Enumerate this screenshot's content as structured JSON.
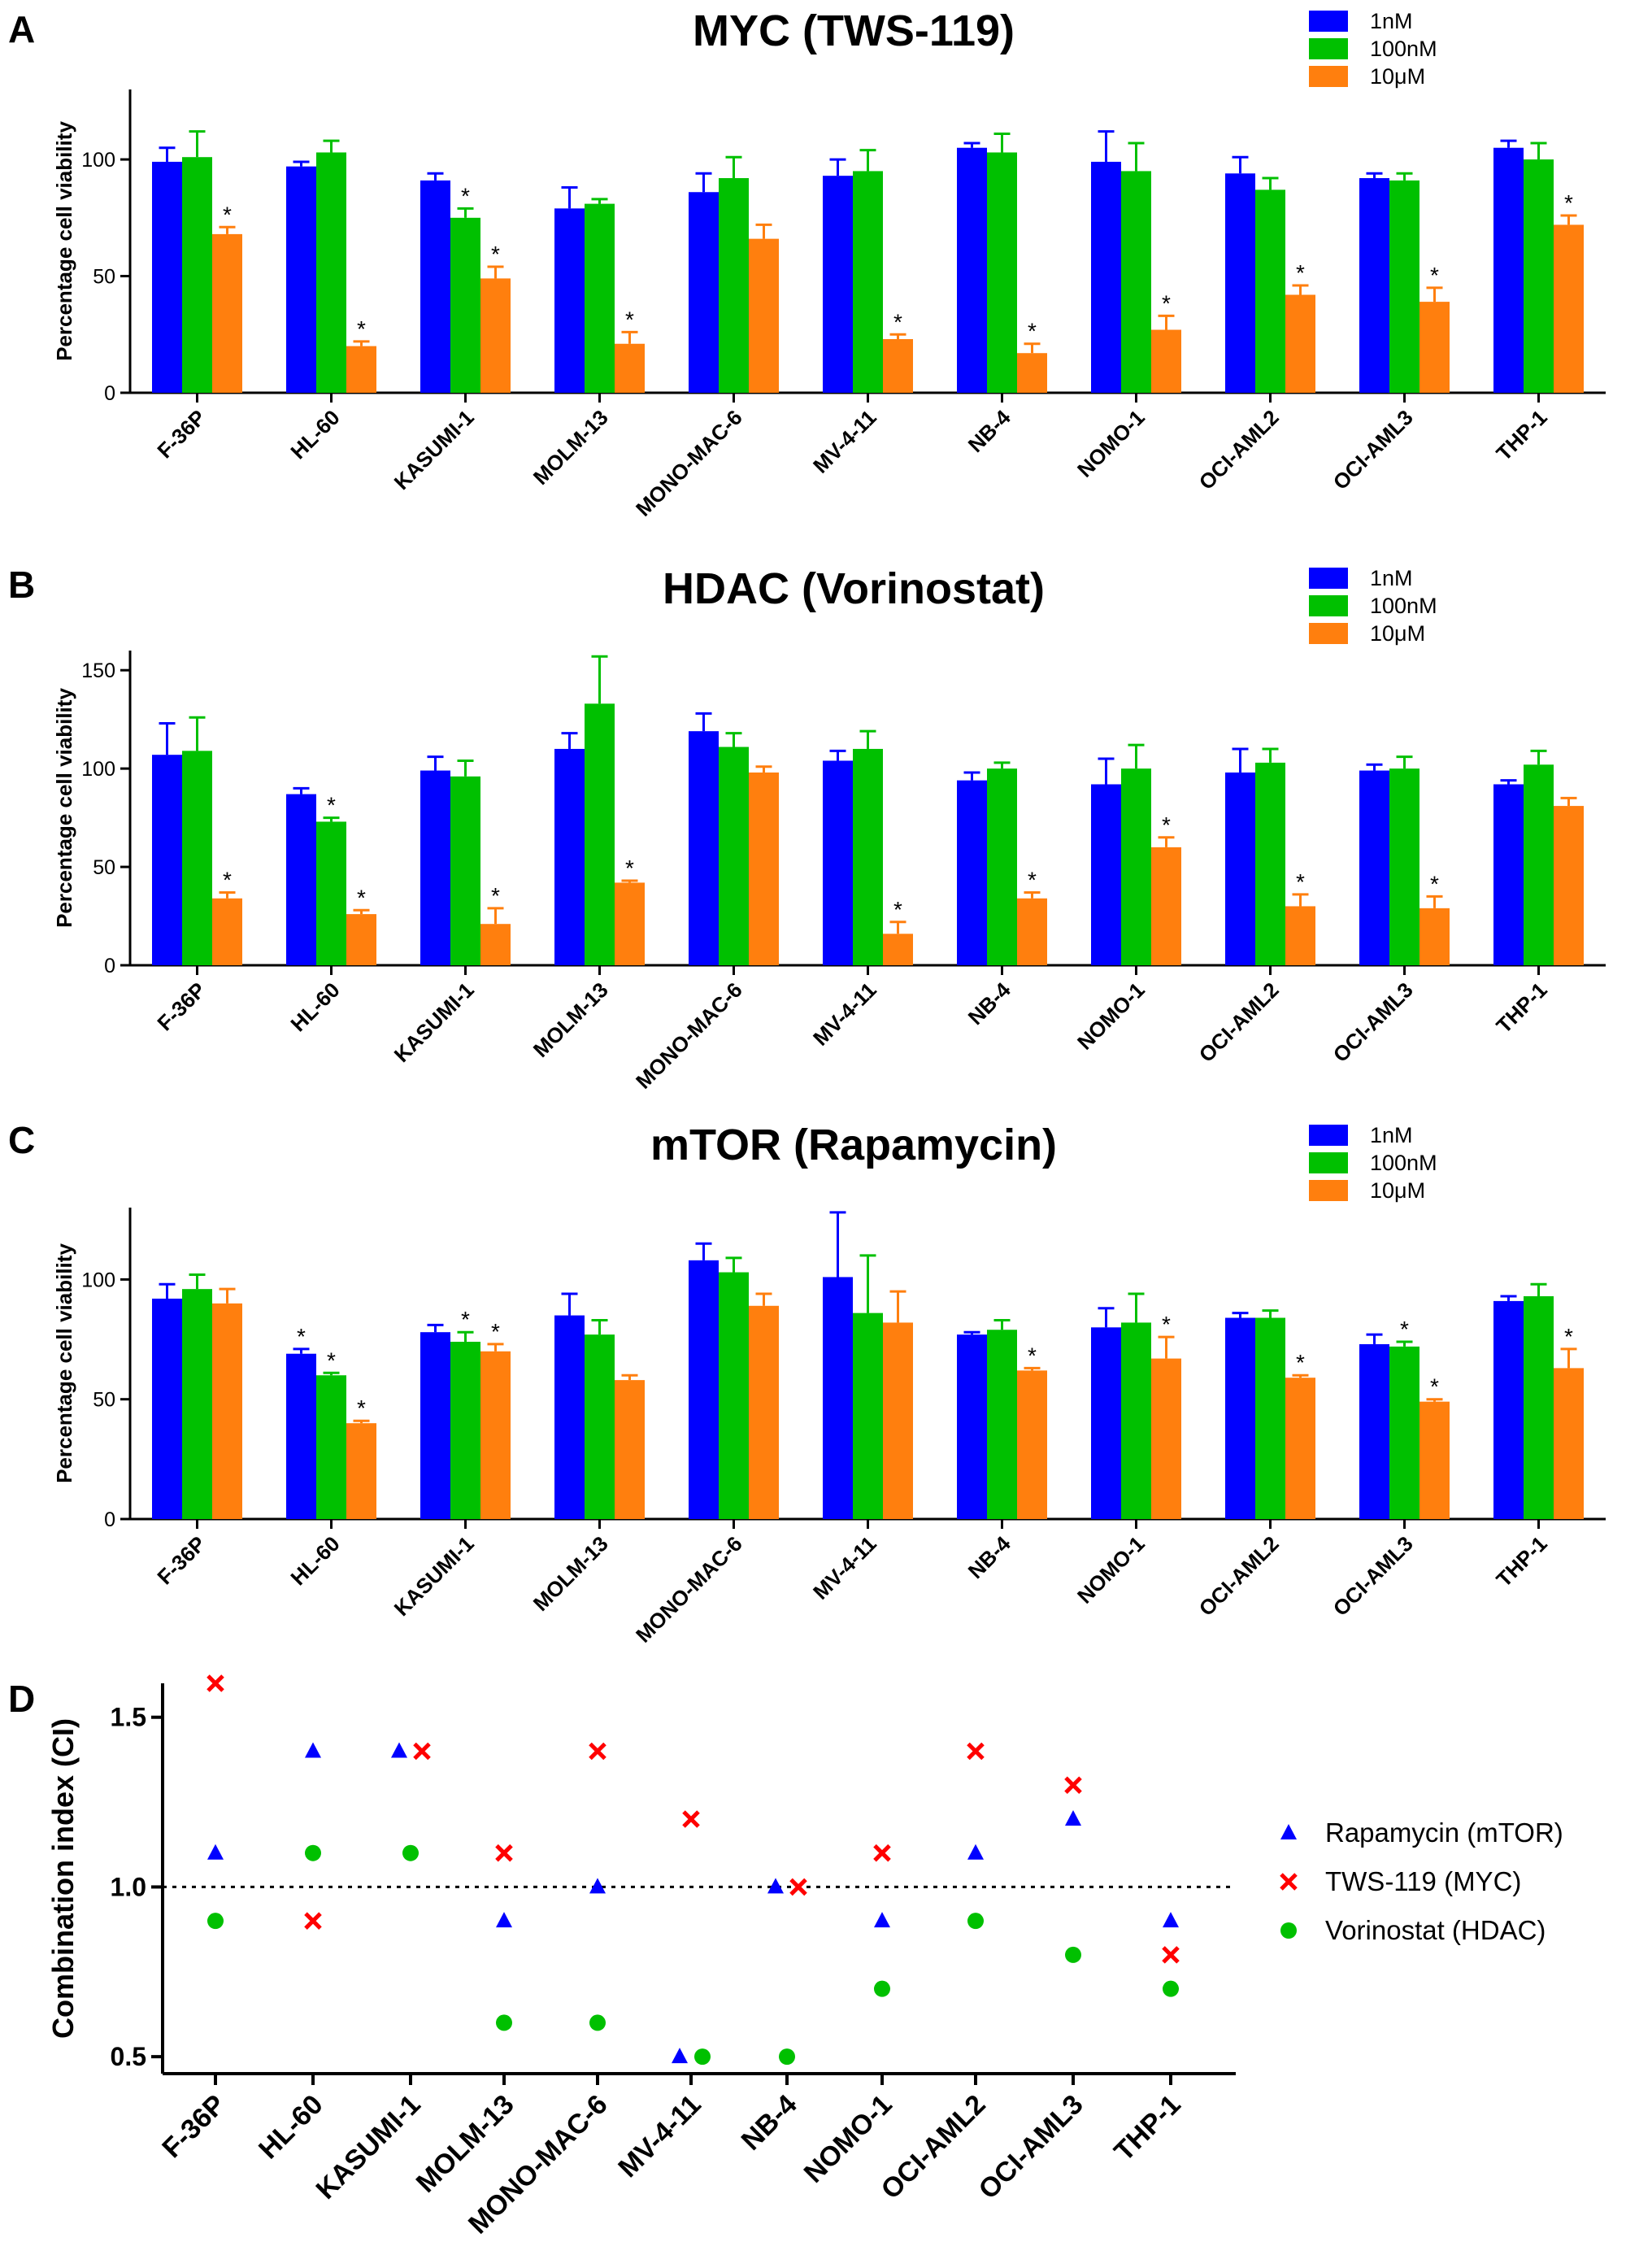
{
  "colors": {
    "1nM": "#0000ff",
    "100nM": "#00c000",
    "10μM": "#ff7f0e",
    "rapamycin": "#0000ff",
    "tws": "#ff0000",
    "vorinostat": "#00c000"
  },
  "chart_data": [
    {
      "panel": "A",
      "type": "bar",
      "title": "MYC (TWS-119)",
      "ylabel": "Percentage cell viability",
      "ylim": [
        0,
        130
      ],
      "yticks": [
        0,
        50,
        100
      ],
      "categories": [
        "F-36P",
        "HL-60",
        "KASUMI-1",
        "MOLM-13",
        "MONO-MAC-6",
        "MV-4-11",
        "NB-4",
        "NOMO-1",
        "OCI-AML2",
        "OCI-AML3",
        "THP-1"
      ],
      "legend_position": "top-right",
      "series": [
        {
          "name": "1nM",
          "color": "#0000ff",
          "values": [
            99,
            97,
            91,
            79,
            86,
            93,
            105,
            99,
            94,
            92,
            105
          ],
          "errors": [
            6,
            2,
            3,
            9,
            8,
            7,
            2,
            13,
            7,
            2,
            3
          ],
          "stars": []
        },
        {
          "name": "100nM",
          "color": "#00c000",
          "values": [
            101,
            103,
            75,
            81,
            92,
            95,
            103,
            95,
            87,
            91,
            100
          ],
          "errors": [
            11,
            5,
            4,
            2,
            9,
            9,
            8,
            12,
            5,
            3,
            7
          ],
          "stars": [
            2
          ]
        },
        {
          "name": "10μM",
          "color": "#ff7f0e",
          "values": [
            68,
            20,
            49,
            21,
            66,
            23,
            17,
            27,
            42,
            39,
            72
          ],
          "errors": [
            3,
            2,
            5,
            5,
            6,
            2,
            4,
            6,
            4,
            6,
            4
          ],
          "stars": [
            0,
            1,
            2,
            3,
            5,
            6,
            7,
            8,
            9,
            10
          ]
        }
      ]
    },
    {
      "panel": "B",
      "type": "bar",
      "title": "HDAC (Vorinostat)",
      "ylabel": "Percentage cell viability",
      "ylim": [
        0,
        160
      ],
      "yticks": [
        0,
        50,
        100,
        150
      ],
      "categories": [
        "F-36P",
        "HL-60",
        "KASUMI-1",
        "MOLM-13",
        "MONO-MAC-6",
        "MV-4-11",
        "NB-4",
        "NOMO-1",
        "OCI-AML2",
        "OCI-AML3",
        "THP-1"
      ],
      "legend_position": "top-right",
      "series": [
        {
          "name": "1nM",
          "color": "#0000ff",
          "values": [
            107,
            87,
            99,
            110,
            119,
            104,
            94,
            92,
            98,
            99,
            92
          ],
          "errors": [
            16,
            3,
            7,
            8,
            9,
            5,
            4,
            13,
            12,
            3,
            2
          ],
          "stars": []
        },
        {
          "name": "100nM",
          "color": "#00c000",
          "values": [
            109,
            73,
            96,
            133,
            111,
            110,
            100,
            100,
            103,
            100,
            102
          ],
          "errors": [
            17,
            2,
            8,
            24,
            7,
            9,
            3,
            12,
            7,
            6,
            7
          ],
          "stars": [
            1
          ]
        },
        {
          "name": "10μM",
          "color": "#ff7f0e",
          "values": [
            34,
            26,
            21,
            42,
            98,
            16,
            34,
            60,
            30,
            29,
            81
          ],
          "errors": [
            3,
            2,
            8,
            1,
            3,
            6,
            3,
            5,
            6,
            6,
            4
          ],
          "stars": [
            0,
            1,
            2,
            3,
            5,
            6,
            7,
            8,
            9
          ]
        }
      ]
    },
    {
      "panel": "C",
      "type": "bar",
      "title": "mTOR (Rapamycin)",
      "ylabel": "Percentage cell viability",
      "ylim": [
        0,
        130
      ],
      "yticks": [
        0,
        50,
        100
      ],
      "categories": [
        "F-36P",
        "HL-60",
        "KASUMI-1",
        "MOLM-13",
        "MONO-MAC-6",
        "MV-4-11",
        "NB-4",
        "NOMO-1",
        "OCI-AML2",
        "OCI-AML3",
        "THP-1"
      ],
      "legend_position": "top-right",
      "series": [
        {
          "name": "1nM",
          "color": "#0000ff",
          "values": [
            92,
            69,
            78,
            85,
            108,
            101,
            77,
            80,
            84,
            73,
            91
          ],
          "errors": [
            6,
            2,
            3,
            9,
            7,
            27,
            1,
            8,
            2,
            4,
            2
          ],
          "stars": [
            1
          ]
        },
        {
          "name": "100nM",
          "color": "#00c000",
          "values": [
            96,
            60,
            74,
            77,
            103,
            86,
            79,
            82,
            84,
            72,
            93
          ],
          "errors": [
            6,
            1,
            4,
            6,
            6,
            24,
            4,
            12,
            3,
            2,
            5
          ],
          "stars": [
            1,
            2,
            9
          ]
        },
        {
          "name": "10μM",
          "color": "#ff7f0e",
          "values": [
            90,
            40,
            70,
            58,
            89,
            82,
            62,
            67,
            59,
            49,
            63
          ],
          "errors": [
            6,
            1,
            3,
            2,
            5,
            13,
            1,
            9,
            1,
            1,
            8
          ],
          "stars": [
            1,
            2,
            6,
            7,
            8,
            9,
            10
          ]
        }
      ]
    },
    {
      "panel": "D",
      "type": "scatter",
      "ylabel": "Combination index (CI)",
      "ylim": [
        0.45,
        1.6
      ],
      "yticks": [
        0.5,
        1.0,
        1.5
      ],
      "reference_line": 1.0,
      "categories": [
        "F-36P",
        "HL-60",
        "KASUMI-1",
        "MOLM-13",
        "MONO-MAC-6",
        "MV-4-11",
        "NB-4",
        "NOMO-1",
        "OCI-AML2",
        "OCI-AML3",
        "THP-1"
      ],
      "legend_position": "right",
      "series": [
        {
          "name": "Rapamycin (mTOR)",
          "marker": "triangle",
          "color": "#0000ff",
          "values": [
            1.1,
            1.4,
            1.4,
            0.9,
            1.0,
            0.5,
            1.0,
            0.9,
            1.1,
            1.2,
            0.9
          ]
        },
        {
          "name": "TWS-119 (MYC)",
          "marker": "x",
          "color": "#ff0000",
          "values": [
            1.6,
            0.9,
            1.4,
            1.1,
            1.4,
            1.2,
            1.0,
            1.1,
            1.4,
            1.3,
            0.8
          ]
        },
        {
          "name": "Vorinostat (HDAC)",
          "marker": "circle",
          "color": "#00c000",
          "values": [
            0.9,
            1.1,
            1.1,
            0.6,
            0.6,
            0.5,
            0.5,
            0.7,
            0.9,
            0.8,
            0.7
          ]
        }
      ]
    }
  ]
}
